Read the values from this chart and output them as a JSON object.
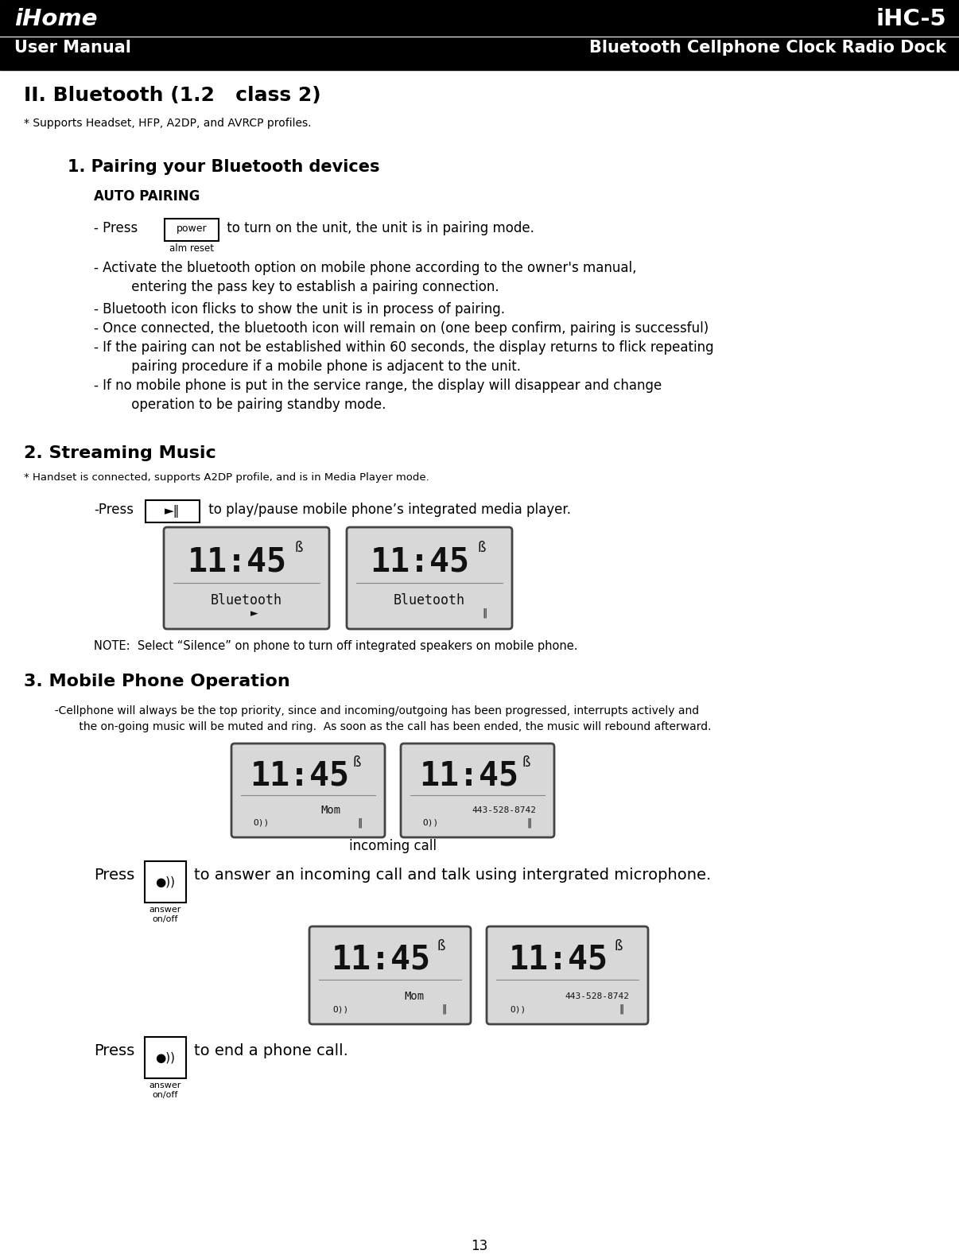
{
  "bg_color": "#ffffff",
  "header_bg": "#000000",
  "header_text_color": "#ffffff",
  "brand_name": "iHome",
  "model_name": "iHC-5",
  "subtitle_left": "User Manual",
  "subtitle_right": "Bluetooth Cellphone Clock Radio Dock",
  "section_title": "II. Bluetooth (1.2   class 2)",
  "section_note": "* Supports Headset, HFP, A2DP, and AVRCP profiles.",
  "sub1_title": "1. Pairing your Bluetooth devices",
  "auto_pairing": "AUTO PAIRING",
  "btn_power_label": "power",
  "btn_alm_label": "alm reset",
  "bullet2a": "- Activate the bluetooth option on mobile phone according to the owner's manual,",
  "bullet2b": "         entering the pass key to establish a pairing connection.",
  "bullet3": "- Bluetooth icon flicks to show the unit is in process of pairing.",
  "bullet4": "- Once connected, the bluetooth icon will remain on (one beep confirm, pairing is successful)",
  "bullet5a": "- If the pairing can not be established within 60 seconds, the display returns to flick repeating",
  "bullet5b": "         pairing procedure if a mobile phone is adjacent to the unit.",
  "bullet6a": "- If no mobile phone is put in the service range, the display will disappear and change",
  "bullet6b": "         operation to be pairing standby mode.",
  "sub2_title": "2. Streaming Music",
  "sub2_note": "* Handset is connected, supports A2DP profile, and is in Media Player mode.",
  "note_text": "NOTE:  Select “Silence” on phone to turn off integrated speakers on mobile phone.",
  "sub3_title": "3. Mobile Phone Operation",
  "cell_text1": "  -Cellphone will always be the top priority, since and incoming/outgoing has been progressed, interrupts actively and",
  "cell_text2": "         the on-going music will be muted and ring.  As soon as the call has been ended, the music will rebound afterward.",
  "incoming_label": "incoming call",
  "press_answer_text": "to answer an incoming call and talk using intergrated microphone.",
  "press_end_text": "to end a phone call.",
  "answer_label": "answer\non/off",
  "page_number": "13"
}
